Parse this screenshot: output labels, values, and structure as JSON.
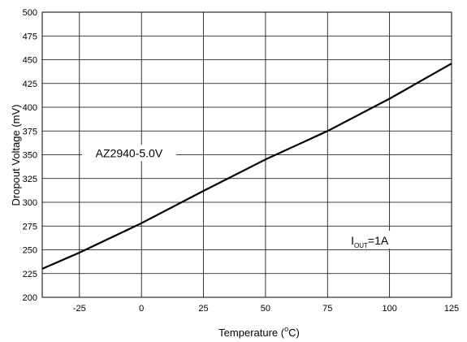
{
  "chart_data": {
    "type": "line",
    "title": "",
    "xlabel": "Temperature (°C)",
    "xlabel_parts": {
      "pre": "Temperature (",
      "sup": "o",
      "post": "C)"
    },
    "ylabel": "Dropout Voltage (mV)",
    "xlim": [
      -40,
      125
    ],
    "ylim": [
      200,
      500
    ],
    "x_ticks": [
      -25,
      0,
      25,
      50,
      75,
      100,
      125
    ],
    "y_ticks": [
      200,
      225,
      250,
      275,
      300,
      325,
      350,
      375,
      400,
      425,
      450,
      475,
      500
    ],
    "grid": true,
    "series": [
      {
        "name": "AZ2940-5.0V",
        "color": "#000000",
        "x": [
          -40,
          -25,
          0,
          25,
          50,
          75,
          100,
          125
        ],
        "y": [
          230,
          247,
          278,
          312,
          345,
          375,
          409,
          446
        ]
      }
    ],
    "annotations": [
      {
        "label": "AZ2940-5.0V",
        "x": -5,
        "y": 351
      },
      {
        "label_parts": {
          "pre": "I",
          "sub": "OUT",
          "post": "=1A"
        },
        "x": 92,
        "y": 259
      }
    ]
  }
}
